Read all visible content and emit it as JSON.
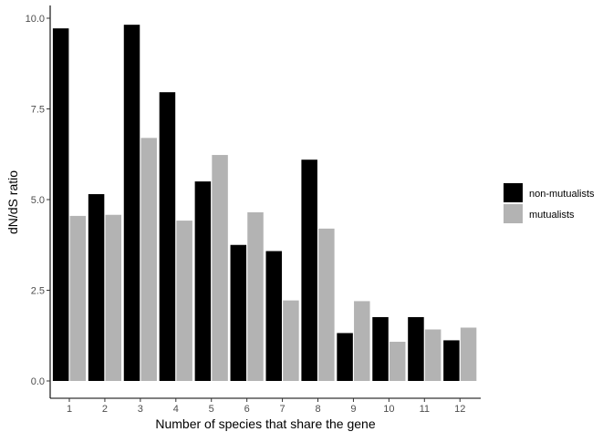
{
  "chart_data": {
    "type": "bar",
    "xlabel": "Number of species that share the gene",
    "ylabel": "dN/dS ratio",
    "categories": [
      "1",
      "2",
      "3",
      "4",
      "5",
      "6",
      "7",
      "8",
      "9",
      "10",
      "11",
      "12"
    ],
    "series": [
      {
        "name": "non-mutualists",
        "color": "#000000",
        "values": [
          9.72,
          5.15,
          9.82,
          7.96,
          5.5,
          3.75,
          3.58,
          6.1,
          1.32,
          1.76,
          1.76,
          1.12
        ]
      },
      {
        "name": "mutualists",
        "color": "#b3b3b3",
        "values": [
          4.55,
          4.58,
          6.7,
          4.42,
          6.23,
          4.65,
          2.22,
          4.2,
          2.2,
          1.08,
          1.42,
          1.47
        ]
      }
    ],
    "ylim": [
      0,
      10.5
    ],
    "yticks": [
      "0.0",
      "2.5",
      "5.0",
      "7.5",
      "10.0"
    ],
    "grid": false,
    "legend_position": "right"
  }
}
